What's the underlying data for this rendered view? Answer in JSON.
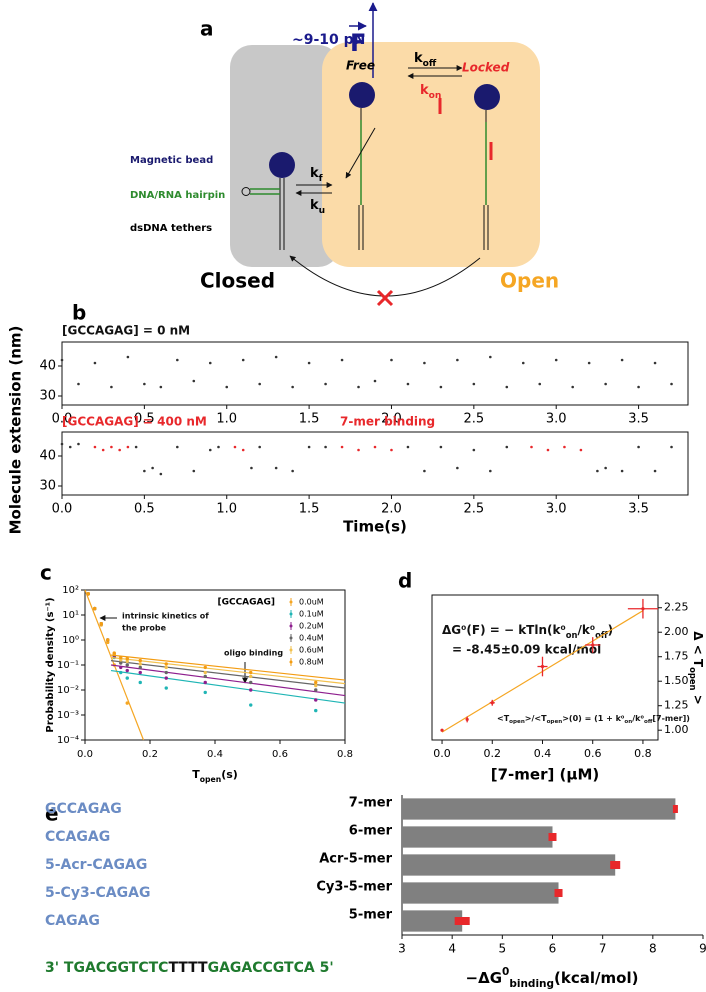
{
  "diagram": {
    "panel": "a",
    "force": "~9-10 pN",
    "force_symbol": "F",
    "k_off": [
      "k",
      {
        "sub": "off"
      }
    ],
    "k_on": [
      "k",
      {
        "sub": "on"
      }
    ],
    "free": "Free",
    "locked": "Locked",
    "magnetic_bead": "Magnetic bead",
    "hairpin": "DNA/RNA hairpin",
    "tethers": "dsDNA tethers",
    "k_f": [
      "k",
      {
        "sub": "f"
      }
    ],
    "k_u": [
      "k",
      {
        "sub": "u"
      }
    ],
    "closed": "Closed",
    "open": "Open"
  },
  "chart_data": [
    {
      "type": "scatter",
      "panel": "b",
      "title": "[GCCAGAG] = 0 nM",
      "title_color": "#111111",
      "ylabel": "Molecule extension (nm)",
      "xlim": [
        0,
        3.8
      ],
      "xticks": [
        {
          "value": 0,
          "label": "0.0"
        },
        0.5,
        {
          "value": 1,
          "label": "1.0"
        },
        1.5,
        {
          "value": 2,
          "label": "2.0"
        },
        2.5,
        {
          "value": 3,
          "label": "3.0"
        },
        3.5
      ],
      "ylim": [
        27,
        48
      ],
      "yticks": [
        30,
        40
      ],
      "series": [
        {
          "color": "#333333",
          "x": [
            0.0,
            0.1,
            0.2,
            0.3,
            0.4,
            0.5,
            0.6,
            0.7,
            0.8,
            0.9,
            1.0,
            1.1,
            1.2,
            1.3,
            1.4,
            1.5,
            1.6,
            1.7,
            1.8,
            1.9,
            2.0,
            2.1,
            2.2,
            2.3,
            2.4,
            2.5,
            2.6,
            2.7,
            2.8,
            2.9,
            3.0,
            3.1,
            3.2,
            3.3,
            3.4,
            3.5,
            3.6,
            3.7
          ],
          "values": [
            42,
            34,
            41,
            33,
            43,
            34,
            33,
            42,
            35,
            41,
            33,
            42,
            34,
            43,
            33,
            41,
            34,
            42,
            33,
            35,
            42,
            34,
            41,
            33,
            42,
            34,
            43,
            33,
            41,
            34,
            42,
            33,
            41,
            34,
            42,
            33,
            41,
            34
          ]
        }
      ]
    },
    {
      "type": "scatter",
      "title": "[GCCAGAG] = 400 nM",
      "title_color": "#e8282b",
      "annotations": [
        "7-mer binding"
      ],
      "annotation_color": "#e8282b",
      "xlabel": "Time(s)",
      "xlim": [
        0,
        3.8
      ],
      "xticks": [
        {
          "value": 0,
          "label": "0.0"
        },
        0.5,
        {
          "value": 1,
          "label": "1.0"
        },
        1.5,
        {
          "value": 2,
          "label": "2.0"
        },
        2.5,
        {
          "value": 3,
          "label": "3.0"
        },
        3.5
      ],
      "ylim": [
        27,
        48
      ],
      "yticks": [
        30,
        40
      ],
      "series": [
        {
          "color": "#333333",
          "x": [
            0.0,
            0.05,
            0.1,
            0.45,
            0.5,
            0.55,
            0.6,
            0.7,
            0.8,
            0.9,
            0.95,
            1.15,
            1.2,
            1.3,
            1.4,
            1.5,
            1.6,
            2.1,
            2.2,
            2.3,
            2.4,
            2.5,
            2.6,
            2.7,
            3.25,
            3.3,
            3.4,
            3.5,
            3.6,
            3.7
          ],
          "values": [
            44,
            43,
            44,
            43,
            35,
            36,
            34,
            43,
            35,
            42,
            43,
            36,
            43,
            36,
            35,
            43,
            43,
            43,
            35,
            43,
            36,
            42,
            35,
            43,
            35,
            36,
            35,
            43,
            35,
            43
          ]
        },
        {
          "color": "#e8282b",
          "x": [
            0.2,
            0.25,
            0.3,
            0.35,
            0.4,
            1.05,
            1.1,
            1.7,
            1.8,
            1.9,
            2.0,
            2.85,
            2.95,
            3.05,
            3.15
          ],
          "values": [
            43,
            42,
            43,
            42,
            43,
            43,
            42,
            43,
            42,
            43,
            42,
            43,
            42,
            43,
            42
          ]
        }
      ]
    },
    {
      "type": "scatter",
      "panel": "c",
      "ylog": true,
      "ylabel": "Probability density (s⁻¹)",
      "xlabel": [
        "T",
        {
          "sub": "open"
        },
        "(s)"
      ],
      "annotations": [
        "intrinsic kinetics of",
        "the probe",
        "oligo binding"
      ],
      "legend_title": "[GCCAGAG]",
      "legend": "upper right",
      "xlim": [
        0,
        0.8
      ],
      "xticks": [
        {
          "value": 0,
          "label": "0.0"
        },
        0.2,
        0.4,
        0.6,
        0.8
      ],
      "ylim": [
        0.0001,
        100
      ],
      "yticks": [
        {
          "value": 0.0001,
          "label": "10⁻⁴"
        },
        {
          "value": 0.001,
          "label": "10⁻³"
        },
        {
          "value": 0.01,
          "label": "10⁻²"
        },
        {
          "value": 0.1,
          "label": "10⁻¹"
        },
        {
          "value": 1,
          "label": "10⁰"
        },
        {
          "value": 10,
          "label": "10¹"
        },
        {
          "value": 100,
          "label": "10²"
        }
      ],
      "series": [
        {
          "name": "0.0uM",
          "color": "#f5a623",
          "x": [
            0.01,
            0.03,
            0.05,
            0.07,
            0.09,
            0.13
          ],
          "values": [
            70,
            18,
            4,
            0.8,
            0.1,
            0.003
          ],
          "fit_x": [
            0,
            0.18
          ],
          "fit_values": [
            100,
            0.0001
          ]
        },
        {
          "name": "0.1uM",
          "color": "#1fb5b5",
          "x": [
            0.01,
            0.03,
            0.05,
            0.07,
            0.09,
            0.11,
            0.13,
            0.17,
            0.25,
            0.37,
            0.51,
            0.71
          ],
          "values": [
            70,
            18,
            4.5,
            1.0,
            0.2,
            0.05,
            0.03,
            0.02,
            0.012,
            0.008,
            0.0025,
            0.0015
          ],
          "fit_x": [
            0.08,
            0.8
          ],
          "fit_values": [
            0.06,
            0.003
          ]
        },
        {
          "name": "0.2uM",
          "color": "#8e1f8e",
          "x": [
            0.01,
            0.03,
            0.05,
            0.07,
            0.09,
            0.11,
            0.13,
            0.17,
            0.25,
            0.37,
            0.51,
            0.71
          ],
          "values": [
            70,
            18,
            4.5,
            1.0,
            0.22,
            0.08,
            0.06,
            0.05,
            0.03,
            0.02,
            0.01,
            0.004
          ],
          "fit_x": [
            0.08,
            0.8
          ],
          "fit_values": [
            0.1,
            0.006
          ]
        },
        {
          "name": "0.4uM",
          "color": "#666666",
          "x": [
            0.01,
            0.03,
            0.05,
            0.07,
            0.09,
            0.11,
            0.13,
            0.17,
            0.25,
            0.37,
            0.51,
            0.71
          ],
          "values": [
            70,
            18,
            4.5,
            1.0,
            0.25,
            0.12,
            0.1,
            0.08,
            0.05,
            0.035,
            0.02,
            0.01
          ],
          "fit_x": [
            0.08,
            0.8
          ],
          "fit_values": [
            0.15,
            0.012
          ]
        },
        {
          "name": "0.6uM",
          "color": "#f2c14e",
          "x": [
            0.01,
            0.03,
            0.05,
            0.07,
            0.09,
            0.11,
            0.13,
            0.17,
            0.25,
            0.37,
            0.51,
            0.71
          ],
          "values": [
            70,
            18,
            4.5,
            1.0,
            0.28,
            0.16,
            0.14,
            0.11,
            0.08,
            0.05,
            0.035,
            0.015
          ],
          "fit_x": [
            0.08,
            0.8
          ],
          "fit_values": [
            0.2,
            0.018
          ]
        },
        {
          "name": "0.8uM",
          "color": "#f39c12",
          "x": [
            0.01,
            0.03,
            0.05,
            0.07,
            0.09,
            0.11,
            0.13,
            0.17,
            0.25,
            0.37,
            0.51,
            0.71
          ],
          "values": [
            70,
            18,
            4.5,
            1.0,
            0.3,
            0.2,
            0.18,
            0.15,
            0.11,
            0.08,
            0.05,
            0.02
          ],
          "fit_x": [
            0.08,
            0.8
          ],
          "fit_values": [
            0.25,
            0.025
          ]
        }
      ]
    },
    {
      "type": "scatter",
      "panel": "d",
      "yaxis_side": "right",
      "ylabel": [
        "Δ < T",
        {
          "sub": "open"
        },
        " >"
      ],
      "xlabel": "[7-mer] (μM)",
      "annotations": [
        [
          "ΔG⁰(F) = − kTln(k⁰",
          {
            "sub": "on"
          },
          "/k⁰",
          {
            "sub": "off"
          },
          ")"
        ],
        "= -8.45±0.09 kcal/mol",
        [
          "<T",
          {
            "sub": "open"
          },
          ">/<T",
          {
            "sub": "open"
          },
          ">(0) = (1 + k⁰",
          {
            "sub": "on"
          },
          "/k⁰",
          {
            "sub": "off"
          },
          "[7-mer])"
        ]
      ],
      "xlim": [
        -0.04,
        0.86
      ],
      "xticks": [
        {
          "value": 0,
          "label": "0.0"
        },
        0.2,
        0.4,
        0.6,
        0.8
      ],
      "ylim": [
        0.9,
        2.38
      ],
      "yticks": [
        {
          "value": 1,
          "label": "1.00"
        },
        1.25,
        {
          "value": 1.5,
          "label": "1.50"
        },
        1.75,
        {
          "value": 2,
          "label": "2.00"
        },
        2.25
      ],
      "fit": {
        "color": "#f5a623",
        "x": [
          0,
          0.8
        ],
        "values": [
          0.98,
          2.22
        ]
      },
      "series": [
        {
          "color": "#e8282b",
          "x": [
            0,
            0.1,
            0.2,
            0.4,
            0.6,
            0.8
          ],
          "values": [
            1.0,
            1.11,
            1.28,
            1.65,
            1.87,
            2.24
          ],
          "errors": [
            0.01,
            0.03,
            0.03,
            0.1,
            0.08,
            0.1
          ],
          "xerrors": [
            0.005,
            0.005,
            0.01,
            0.02,
            0.03,
            0.06
          ]
        }
      ]
    },
    {
      "type": "bar",
      "panel": "e",
      "orientation": "horizontal",
      "color": "#808080",
      "error_color": "#e8282b",
      "categories": [
        "7-mer",
        "6-mer",
        "Acr-5-mer",
        "Cy3-5-mer",
        "5-mer"
      ],
      "sequences": [
        "GCCAGAG",
        "CCAGAG",
        "5-Acr-CAGAG",
        "5-Cy3-CAGAG",
        "CAGAG"
      ],
      "values": [
        8.45,
        6.0,
        7.25,
        6.12,
        4.2
      ],
      "errors": [
        0.05,
        0.08,
        0.1,
        0.08,
        0.15
      ],
      "xlim": [
        3,
        9
      ],
      "xticks": [
        3,
        4,
        5,
        6,
        7,
        8,
        9
      ],
      "xlabel": [
        "−ΔG",
        {
          "sup": "0"
        },
        {
          "sub": "binding"
        },
        "(kcal/mol)"
      ],
      "template": [
        "3' TGACGGTCTC",
        "TTTT",
        "GAGACCGTCA 5'"
      ]
    }
  ]
}
